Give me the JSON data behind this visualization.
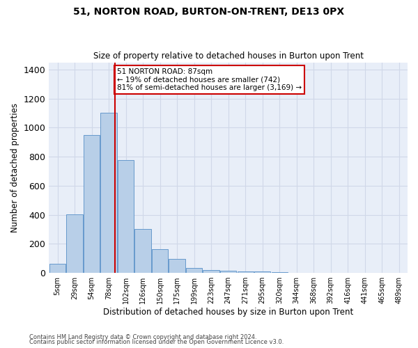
{
  "title": "51, NORTON ROAD, BURTON-ON-TRENT, DE13 0PX",
  "subtitle": "Size of property relative to detached houses in Burton upon Trent",
  "xlabel": "Distribution of detached houses by size in Burton upon Trent",
  "ylabel": "Number of detached properties",
  "footnote1": "Contains HM Land Registry data © Crown copyright and database right 2024.",
  "footnote2": "Contains public sector information licensed under the Open Government Licence v3.0.",
  "bar_color": "#b8cfe8",
  "bar_edge_color": "#6699cc",
  "grid_color": "#d0d8e8",
  "bg_color": "#e8eef8",
  "vline_color": "#cc0000",
  "vline_x_index": 3,
  "annotation_text": "51 NORTON ROAD: 87sqm\n← 19% of detached houses are smaller (742)\n81% of semi-detached houses are larger (3,169) →",
  "annotation_box_color": "#cc0000",
  "categories": [
    "5sqm",
    "29sqm",
    "54sqm",
    "78sqm",
    "102sqm",
    "126sqm",
    "150sqm",
    "175sqm",
    "199sqm",
    "223sqm",
    "247sqm",
    "271sqm",
    "295sqm",
    "320sqm",
    "344sqm",
    "368sqm",
    "392sqm",
    "416sqm",
    "441sqm",
    "465sqm",
    "489sqm"
  ],
  "bin_edges": [
    5,
    29,
    54,
    78,
    102,
    126,
    150,
    175,
    199,
    223,
    247,
    271,
    295,
    320,
    344,
    368,
    392,
    416,
    441,
    465,
    489
  ],
  "bin_width": 24,
  "values": [
    65,
    405,
    950,
    1105,
    775,
    305,
    165,
    98,
    35,
    18,
    15,
    10,
    10,
    8,
    0,
    0,
    0,
    0,
    0,
    0,
    0
  ],
  "ylim": [
    0,
    1450
  ],
  "yticks": [
    0,
    200,
    400,
    600,
    800,
    1000,
    1200,
    1400
  ]
}
